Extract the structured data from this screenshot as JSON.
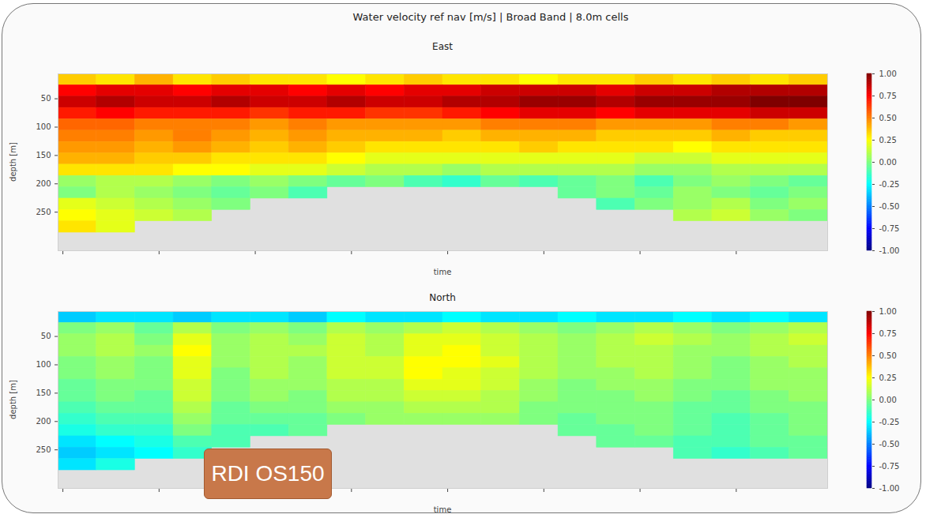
{
  "chart_data": {
    "type": "heatmap",
    "title": "Water velocity ref nav [m/s] | Broad Band | 8.0m cells",
    "annotations": [
      "RDI OS150"
    ],
    "panels": [
      {
        "type": "heatmap",
        "title": "East",
        "xlabel": "time",
        "ylabel": "depth [m]",
        "xlim": [
          -0.05,
          7.95
        ],
        "xticks": [
          0,
          1,
          2,
          3,
          4,
          5,
          6,
          7
        ],
        "ylim": [
          318,
          6
        ],
        "yticks": [
          50,
          100,
          150,
          200,
          250
        ],
        "tick_labels": "y",
        "x_bins": [
          -0.05,
          0.35,
          0.75,
          1.15,
          1.55,
          1.95,
          2.35,
          2.75,
          3.15,
          3.55,
          3.95,
          4.35,
          4.75,
          5.15,
          5.55,
          5.95,
          6.35,
          6.75,
          7.15,
          7.55,
          7.95
        ],
        "y_bins": [
          6,
          26,
          46,
          66,
          86,
          106,
          126,
          146,
          166,
          186,
          206,
          226,
          246,
          266,
          286,
          306
        ],
        "values": [
          [
            0.35,
            0.3,
            0.4,
            0.3,
            0.35,
            0.3,
            0.3,
            0.25,
            0.3,
            0.35,
            0.3,
            0.3,
            0.25,
            0.3,
            0.3,
            0.35,
            0.3,
            0.35,
            0.3,
            0.35
          ],
          [
            0.75,
            0.8,
            0.8,
            0.75,
            0.8,
            0.8,
            0.75,
            0.8,
            0.75,
            0.8,
            0.8,
            0.85,
            0.85,
            0.85,
            0.8,
            0.85,
            0.85,
            0.9,
            0.9,
            0.9
          ],
          [
            0.85,
            0.9,
            0.85,
            0.85,
            0.9,
            0.85,
            0.85,
            0.9,
            0.85,
            0.85,
            0.9,
            0.9,
            0.95,
            0.95,
            0.9,
            0.95,
            0.95,
            0.95,
            1.0,
            1.0
          ],
          [
            0.7,
            0.75,
            0.7,
            0.7,
            0.7,
            0.65,
            0.7,
            0.7,
            0.65,
            0.65,
            0.7,
            0.75,
            0.8,
            0.8,
            0.75,
            0.8,
            0.8,
            0.8,
            0.85,
            0.85
          ],
          [
            0.55,
            0.55,
            0.5,
            0.5,
            0.5,
            0.45,
            0.5,
            0.45,
            0.45,
            0.45,
            0.45,
            0.5,
            0.5,
            0.5,
            0.45,
            0.45,
            0.45,
            0.5,
            0.5,
            0.45
          ],
          [
            0.5,
            0.5,
            0.45,
            0.5,
            0.45,
            0.4,
            0.45,
            0.4,
            0.4,
            0.4,
            0.35,
            0.4,
            0.4,
            0.4,
            0.35,
            0.35,
            0.35,
            0.4,
            0.35,
            0.35
          ],
          [
            0.45,
            0.45,
            0.4,
            0.45,
            0.4,
            0.35,
            0.4,
            0.35,
            0.3,
            0.3,
            0.3,
            0.3,
            0.35,
            0.3,
            0.3,
            0.3,
            0.25,
            0.3,
            0.3,
            0.3
          ],
          [
            0.4,
            0.4,
            0.35,
            0.35,
            0.3,
            0.3,
            0.3,
            0.25,
            0.2,
            0.2,
            0.2,
            0.2,
            0.2,
            0.2,
            0.2,
            0.15,
            0.15,
            0.2,
            0.2,
            0.2
          ],
          [
            0.3,
            0.3,
            0.3,
            0.25,
            0.25,
            0.2,
            0.2,
            0.15,
            0.1,
            0.1,
            0.05,
            0.1,
            0.1,
            0.1,
            0.1,
            0.05,
            0.05,
            0.1,
            0.1,
            0.1
          ],
          [
            0.05,
            0.1,
            0.1,
            0.05,
            0.0,
            0.05,
            0.0,
            -0.05,
            0.0,
            -0.1,
            -0.15,
            -0.05,
            -0.1,
            -0.05,
            0.0,
            -0.1,
            0.0,
            0.05,
            0.0,
            -0.05
          ],
          [
            0.0,
            0.1,
            0.05,
            0.0,
            -0.05,
            0.0,
            -0.1,
            null,
            null,
            null,
            null,
            null,
            null,
            -0.05,
            0.0,
            -0.05,
            0.05,
            0.0,
            -0.05,
            0.0
          ],
          [
            0.2,
            0.15,
            0.1,
            0.05,
            0.0,
            null,
            null,
            null,
            null,
            null,
            null,
            null,
            null,
            null,
            -0.1,
            0.0,
            0.05,
            0.1,
            0.0,
            0.05
          ],
          [
            0.25,
            0.2,
            0.15,
            0.1,
            null,
            null,
            null,
            null,
            null,
            null,
            null,
            null,
            null,
            null,
            null,
            null,
            0.1,
            0.15,
            0.05,
            0.0
          ],
          [
            0.3,
            0.2,
            null,
            null,
            null,
            null,
            null,
            null,
            null,
            null,
            null,
            null,
            null,
            null,
            null,
            null,
            null,
            null,
            null,
            null
          ],
          [
            null,
            null,
            null,
            null,
            null,
            null,
            null,
            null,
            null,
            null,
            null,
            null,
            null,
            null,
            null,
            null,
            null,
            null,
            null,
            null
          ]
        ],
        "colorbar": {
          "range": [
            -1,
            1
          ],
          "ticks": [
            {
              "value": 1,
              "label": "1.00"
            },
            {
              "value": 0.75,
              "label": "0.75"
            },
            {
              "value": 0.5,
              "label": "0.50"
            },
            {
              "value": 0.25,
              "label": "0.25"
            },
            {
              "value": 0,
              "label": "0.00"
            },
            {
              "value": -0.25,
              "label": "-0.25"
            },
            {
              "value": -0.5,
              "label": "-0.50"
            },
            {
              "value": -0.75,
              "label": "-0.75"
            },
            {
              "value": -1,
              "label": "-1.00"
            }
          ]
        }
      },
      {
        "type": "heatmap",
        "title": "North",
        "xlabel": "time",
        "ylabel": "depth [m]",
        "xlim": [
          -0.05,
          7.95
        ],
        "xticks": [
          0,
          1,
          2,
          3,
          4,
          5,
          6,
          7
        ],
        "ylim": [
          318,
          6
        ],
        "yticks": [
          50,
          100,
          150,
          200,
          250
        ],
        "tick_labels": "y",
        "x_bins": [
          -0.05,
          0.35,
          0.75,
          1.15,
          1.55,
          1.95,
          2.35,
          2.75,
          3.15,
          3.55,
          3.95,
          4.35,
          4.75,
          5.15,
          5.55,
          5.95,
          6.35,
          6.75,
          7.15,
          7.55,
          7.95
        ],
        "y_bins": [
          6,
          26,
          46,
          66,
          86,
          106,
          126,
          146,
          166,
          186,
          206,
          226,
          246,
          266,
          286,
          306
        ],
        "values": [
          [
            -0.35,
            -0.3,
            -0.3,
            -0.35,
            -0.3,
            -0.3,
            -0.35,
            -0.25,
            -0.3,
            -0.3,
            -0.25,
            -0.3,
            -0.3,
            -0.25,
            -0.3,
            -0.3,
            -0.25,
            -0.3,
            -0.25,
            -0.3
          ],
          [
            0.0,
            0.05,
            -0.05,
            0.1,
            0.0,
            0.05,
            0.0,
            0.1,
            0.05,
            0.1,
            0.15,
            0.1,
            0.05,
            0.0,
            0.05,
            0.1,
            0.05,
            0.0,
            0.05,
            0.1
          ],
          [
            0.05,
            0.1,
            0.0,
            0.2,
            0.05,
            0.1,
            0.05,
            0.15,
            0.1,
            0.2,
            0.2,
            0.15,
            0.1,
            0.05,
            0.1,
            0.15,
            0.1,
            0.05,
            0.1,
            0.15
          ],
          [
            0.05,
            0.1,
            0.05,
            0.25,
            0.05,
            0.1,
            0.1,
            0.15,
            0.1,
            0.2,
            0.25,
            0.15,
            0.1,
            0.05,
            0.1,
            0.1,
            0.05,
            0.05,
            0.1,
            0.1
          ],
          [
            0.0,
            0.05,
            0.0,
            0.2,
            0.05,
            0.1,
            0.05,
            0.15,
            0.15,
            0.25,
            0.25,
            0.2,
            0.1,
            0.05,
            0.1,
            0.1,
            0.05,
            0.0,
            0.05,
            0.1
          ],
          [
            0.0,
            0.05,
            0.0,
            0.2,
            0.0,
            0.1,
            0.05,
            0.15,
            0.15,
            0.25,
            0.2,
            0.15,
            0.1,
            0.05,
            0.05,
            0.1,
            0.05,
            0.0,
            0.05,
            0.05
          ],
          [
            -0.05,
            0.0,
            0.0,
            0.15,
            0.0,
            0.05,
            0.05,
            0.1,
            0.1,
            0.2,
            0.2,
            0.15,
            0.05,
            0.0,
            0.05,
            0.05,
            0.0,
            0.0,
            0.05,
            0.05
          ],
          [
            -0.05,
            0.0,
            -0.05,
            0.15,
            0.0,
            0.05,
            0.0,
            0.1,
            0.1,
            0.15,
            0.15,
            0.1,
            0.05,
            0.0,
            0.0,
            0.05,
            0.0,
            -0.05,
            0.0,
            0.05
          ],
          [
            -0.1,
            -0.05,
            -0.05,
            0.1,
            -0.05,
            0.0,
            0.0,
            0.05,
            0.05,
            0.1,
            0.1,
            0.1,
            0.0,
            0.0,
            0.0,
            0.0,
            -0.05,
            -0.05,
            0.0,
            0.0
          ],
          [
            -0.15,
            -0.1,
            -0.1,
            0.05,
            -0.05,
            -0.05,
            -0.05,
            0.0,
            0.05,
            0.05,
            0.05,
            0.05,
            0.0,
            -0.05,
            0.0,
            0.0,
            -0.05,
            -0.1,
            -0.05,
            0.0
          ],
          [
            -0.2,
            -0.15,
            -0.15,
            0.0,
            -0.1,
            -0.1,
            -0.05,
            null,
            null,
            null,
            null,
            null,
            null,
            -0.05,
            -0.05,
            0.0,
            -0.05,
            -0.1,
            -0.05,
            0.0
          ],
          [
            -0.3,
            -0.25,
            -0.2,
            -0.1,
            -0.1,
            null,
            null,
            null,
            null,
            null,
            null,
            null,
            null,
            null,
            -0.05,
            -0.05,
            -0.1,
            -0.1,
            -0.05,
            -0.05
          ],
          [
            -0.35,
            -0.3,
            -0.25,
            -0.15,
            null,
            null,
            null,
            null,
            null,
            null,
            null,
            null,
            null,
            null,
            null,
            null,
            -0.1,
            -0.15,
            -0.1,
            -0.05
          ],
          [
            -0.3,
            -0.2,
            null,
            null,
            null,
            null,
            null,
            null,
            null,
            null,
            null,
            null,
            null,
            null,
            null,
            null,
            null,
            null,
            null,
            null
          ],
          [
            null,
            null,
            null,
            null,
            null,
            null,
            null,
            null,
            null,
            null,
            null,
            null,
            null,
            null,
            null,
            null,
            null,
            null,
            null,
            null
          ]
        ],
        "colorbar": {
          "range": [
            -1,
            1
          ],
          "ticks": [
            {
              "value": 1,
              "label": "1.00"
            },
            {
              "value": 0.75,
              "label": "0.75"
            },
            {
              "value": 0.5,
              "label": "0.50"
            },
            {
              "value": 0.25,
              "label": "0.25"
            },
            {
              "value": 0,
              "label": "0.00"
            },
            {
              "value": -0.25,
              "label": "-0.25"
            },
            {
              "value": -0.5,
              "label": "-0.50"
            },
            {
              "value": -0.75,
              "label": "-0.75"
            },
            {
              "value": -1,
              "label": "-1.00"
            }
          ]
        }
      }
    ]
  }
}
